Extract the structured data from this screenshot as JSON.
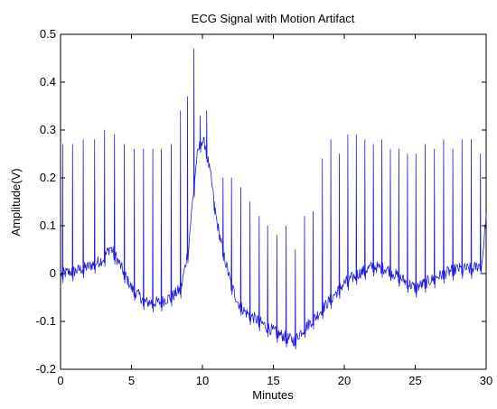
{
  "chart_data": {
    "type": "line",
    "title": "ECG Signal with Motion Artifact",
    "xlabel": "Minutes",
    "ylabel": "Amplitude(V)",
    "xlim": [
      0,
      30
    ],
    "ylim": [
      -0.2,
      0.5
    ],
    "xticks": [
      0,
      5,
      10,
      15,
      20,
      25,
      30
    ],
    "yticks": [
      -0.2,
      -0.1,
      0,
      0.1,
      0.2,
      0.3,
      0.4,
      0.5
    ],
    "xtick_labels": [
      "0",
      "5",
      "10",
      "15",
      "20",
      "25",
      "30"
    ],
    "ytick_labels": [
      "-0.2",
      "-0.1",
      "0",
      "0.1",
      "0.2",
      "0.3",
      "0.4",
      "0.5"
    ],
    "grid": false,
    "line_color": "#1f1fdc",
    "baseline": {
      "x": [
        0,
        1,
        2,
        3,
        3.5,
        4,
        5,
        6,
        7,
        8,
        8.5,
        9,
        9.3,
        9.6,
        9.9,
        10.2,
        10.6,
        11,
        11.5,
        12,
        12.5,
        13,
        13.5,
        14,
        15,
        16,
        16.5,
        17,
        18,
        19,
        20,
        21,
        22,
        23,
        24,
        25,
        26,
        27,
        28,
        29,
        29.7,
        30
      ],
      "y": [
        0,
        0.005,
        0.015,
        0.03,
        0.055,
        0.03,
        -0.03,
        -0.06,
        -0.06,
        -0.045,
        -0.03,
        0.05,
        0.15,
        0.24,
        0.28,
        0.27,
        0.2,
        0.11,
        0.04,
        -0.02,
        -0.06,
        -0.08,
        -0.09,
        -0.1,
        -0.12,
        -0.135,
        -0.14,
        -0.12,
        -0.09,
        -0.055,
        -0.02,
        0.0,
        0.015,
        0.01,
        -0.01,
        -0.03,
        -0.015,
        0.0,
        0.01,
        0.01,
        0.02,
        0.12
      ]
    },
    "r_peaks": {
      "x": [
        0.15,
        0.85,
        1.6,
        2.4,
        3.1,
        3.8,
        4.5,
        5.2,
        5.85,
        6.5,
        7.1,
        7.8,
        8.45,
        8.95,
        9.4,
        9.85,
        10.3,
        10.85,
        11.45,
        12.05,
        12.7,
        13.35,
        14.0,
        14.6,
        15.25,
        15.9,
        16.55,
        17.2,
        17.8,
        18.45,
        19.05,
        19.65,
        20.25,
        20.85,
        21.45,
        22.05,
        22.65,
        23.25,
        23.85,
        24.45,
        25.05,
        25.7,
        26.35,
        27.0,
        27.65,
        28.3,
        28.95,
        29.6
      ],
      "y": [
        0.27,
        0.27,
        0.28,
        0.28,
        0.3,
        0.29,
        0.27,
        0.26,
        0.26,
        0.26,
        0.26,
        0.27,
        0.34,
        0.37,
        0.47,
        0.33,
        0.34,
        0.15,
        0.2,
        0.2,
        0.18,
        0.15,
        0.12,
        0.1,
        0.08,
        0.1,
        0.05,
        0.12,
        0.13,
        0.24,
        0.28,
        0.25,
        0.29,
        0.29,
        0.28,
        0.27,
        0.28,
        0.26,
        0.26,
        0.25,
        0.25,
        0.27,
        0.26,
        0.28,
        0.26,
        0.28,
        0.28,
        0.25
      ]
    }
  }
}
